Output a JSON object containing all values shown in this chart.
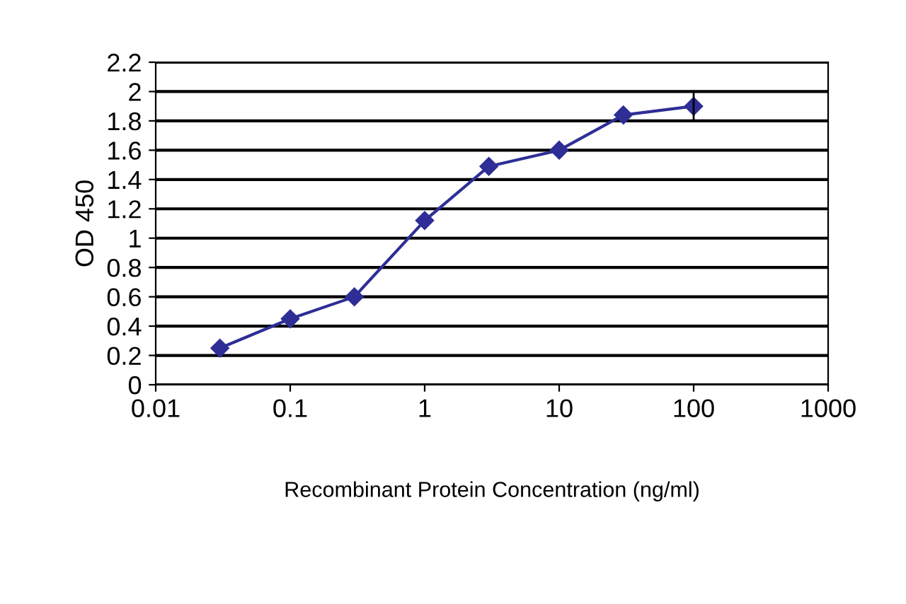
{
  "chart_data": {
    "type": "line",
    "xlabel": "Recombinant Protein Concentration (ng/ml)",
    "ylabel": "OD 450",
    "x": [
      0.03,
      0.1,
      0.3,
      1,
      3,
      10,
      30,
      100
    ],
    "series": [
      {
        "color": "#2e2e96",
        "values": [
          0.25,
          0.45,
          0.6,
          1.12,
          1.49,
          1.6,
          1.84,
          1.9
        ],
        "errors": [
          null,
          null,
          null,
          null,
          null,
          null,
          null,
          0.1
        ]
      }
    ],
    "log": "x",
    "xlim": [
      0.01,
      1000
    ],
    "xticks": [
      0.01,
      0.1,
      1,
      10,
      100,
      1000
    ],
    "ylim": [
      0,
      2.2
    ],
    "yticks": [
      0,
      0.2,
      0.4,
      0.6,
      0.8,
      1,
      1.2,
      1.4,
      1.6,
      1.8,
      2,
      2.2
    ],
    "grid": "y",
    "marker": "diamond",
    "line_style": "solid"
  }
}
